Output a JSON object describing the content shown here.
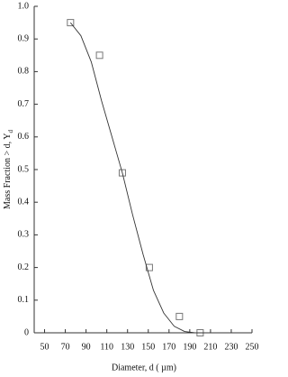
{
  "chart_data": {
    "type": "scatter",
    "xlabel": "Diameter, d (   µm)",
    "ylabel": "Mass Fraction > d, Y",
    "ylabel_subscript": "d",
    "xlim": [
      40,
      250
    ],
    "xticks": [
      50,
      70,
      90,
      110,
      130,
      150,
      170,
      190,
      210,
      230,
      250
    ],
    "ylim": [
      0,
      1
    ],
    "yticks": [
      0,
      0.1,
      0.2,
      0.3,
      0.4,
      0.5,
      0.6,
      0.7,
      0.8,
      0.9,
      {
        "value": 1,
        "label": "1.0"
      }
    ],
    "series": [
      {
        "type": "scatter",
        "color": "#777777",
        "x": [
          75,
          103,
          125,
          151,
          180,
          200
        ],
        "values": [
          0.95,
          0.85,
          0.49,
          0.2,
          0.05,
          0.0
        ]
      },
      {
        "type": "line",
        "color": "#333333",
        "x": [
          75,
          85,
          95,
          105,
          115,
          125,
          135,
          145,
          155,
          165,
          175,
          185,
          195,
          205,
          250
        ],
        "values": [
          0.95,
          0.91,
          0.83,
          0.71,
          0.6,
          0.49,
          0.36,
          0.24,
          0.13,
          0.06,
          0.02,
          0.004,
          0,
          0,
          0
        ]
      }
    ]
  }
}
